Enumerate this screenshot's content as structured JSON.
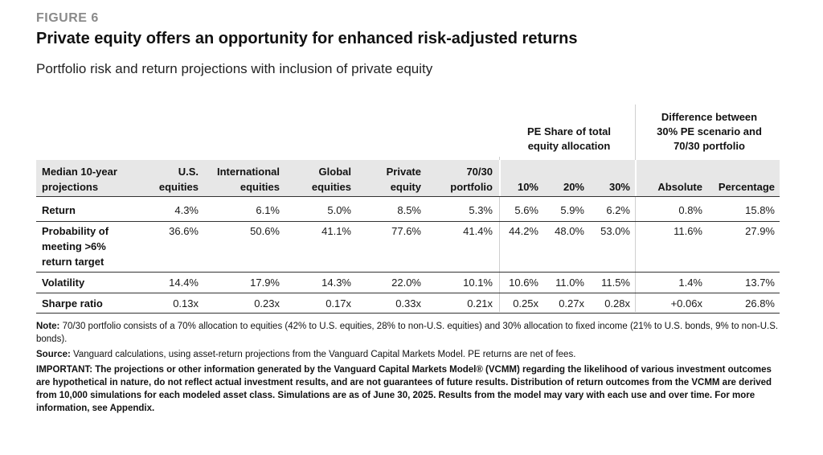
{
  "figure_label": "FIGURE 6",
  "title": "Private equity offers an opportunity for enhanced risk-adjusted returns",
  "subtitle": "Portfolio risk and return projections with inclusion of private equity",
  "group_headers": {
    "pe_share_line1": "PE Share of total",
    "pe_share_line2": "equity allocation",
    "diff_line1": "Difference between",
    "diff_line2": "30% PE scenario and",
    "diff_line3": "70/30 portfolio"
  },
  "columns": {
    "label_line1": "Median 10-year",
    "label_line2": "projections",
    "us_line1": "U.S.",
    "us_line2": "equities",
    "intl_line1": "International",
    "intl_line2": "equities",
    "global_line1": "Global",
    "global_line2": "equities",
    "private_line1": "Private",
    "private_line2": "equity",
    "p7030_line1": "70/30",
    "p7030_line2": "portfolio",
    "pe10": "10%",
    "pe20": "20%",
    "pe30": "30%",
    "absolute": "Absolute",
    "percentage": "Percentage"
  },
  "rows": [
    {
      "label_lines": [
        "Return"
      ],
      "us": "4.3%",
      "intl": "6.1%",
      "global": "5.0%",
      "private": "8.5%",
      "p7030": "5.3%",
      "pe10": "5.6%",
      "pe20": "5.9%",
      "pe30": "6.2%",
      "absolute": "0.8%",
      "percentage": "15.8%"
    },
    {
      "label_lines": [
        "Probability of",
        "meeting >6%",
        "return target"
      ],
      "us": "36.6%",
      "intl": "50.6%",
      "global": "41.1%",
      "private": "77.6%",
      "p7030": "41.4%",
      "pe10": "44.2%",
      "pe20": "48.0%",
      "pe30": "53.0%",
      "absolute": "11.6%",
      "percentage": "27.9%"
    },
    {
      "label_lines": [
        "Volatility"
      ],
      "us": "14.4%",
      "intl": "17.9%",
      "global": "14.3%",
      "private": "22.0%",
      "p7030": "10.1%",
      "pe10": "10.6%",
      "pe20": "11.0%",
      "pe30": "11.5%",
      "absolute": "1.4%",
      "percentage": "13.7%"
    },
    {
      "label_lines": [
        "Sharpe ratio"
      ],
      "us": "0.13x",
      "intl": "0.23x",
      "global": "0.17x",
      "private": "0.33x",
      "p7030": "0.21x",
      "pe10": "0.25x",
      "pe20": "0.27x",
      "pe30": "0.28x",
      "absolute": "+0.06x",
      "percentage": "26.8%"
    }
  ],
  "notes": {
    "note_label": "Note:",
    "note_text": " 70/30 portfolio consists of a 70% allocation to equities (42% to U.S. equities, 28% to non-U.S. equities) and 30% allocation to fixed income (21% to U.S. bonds, 9% to non-U.S. bonds).",
    "source_label": "Source:",
    "source_text": " Vanguard calculations, using asset-return projections from the Vanguard Capital Markets Model. PE returns are net of fees.",
    "important_text": "IMPORTANT: The projections or other information generated by the Vanguard Capital Markets Model® (VCMM) regarding the likelihood of various investment outcomes are hypothetical in nature, do not reflect actual investment results, and are not guarantees of future results. Distribution of return outcomes from the VCMM are derived from 10,000 simulations for each modeled asset class. Simulations are as of June 30, 2025. Results from the model may vary with each use and over time. For more information, see Appendix."
  }
}
